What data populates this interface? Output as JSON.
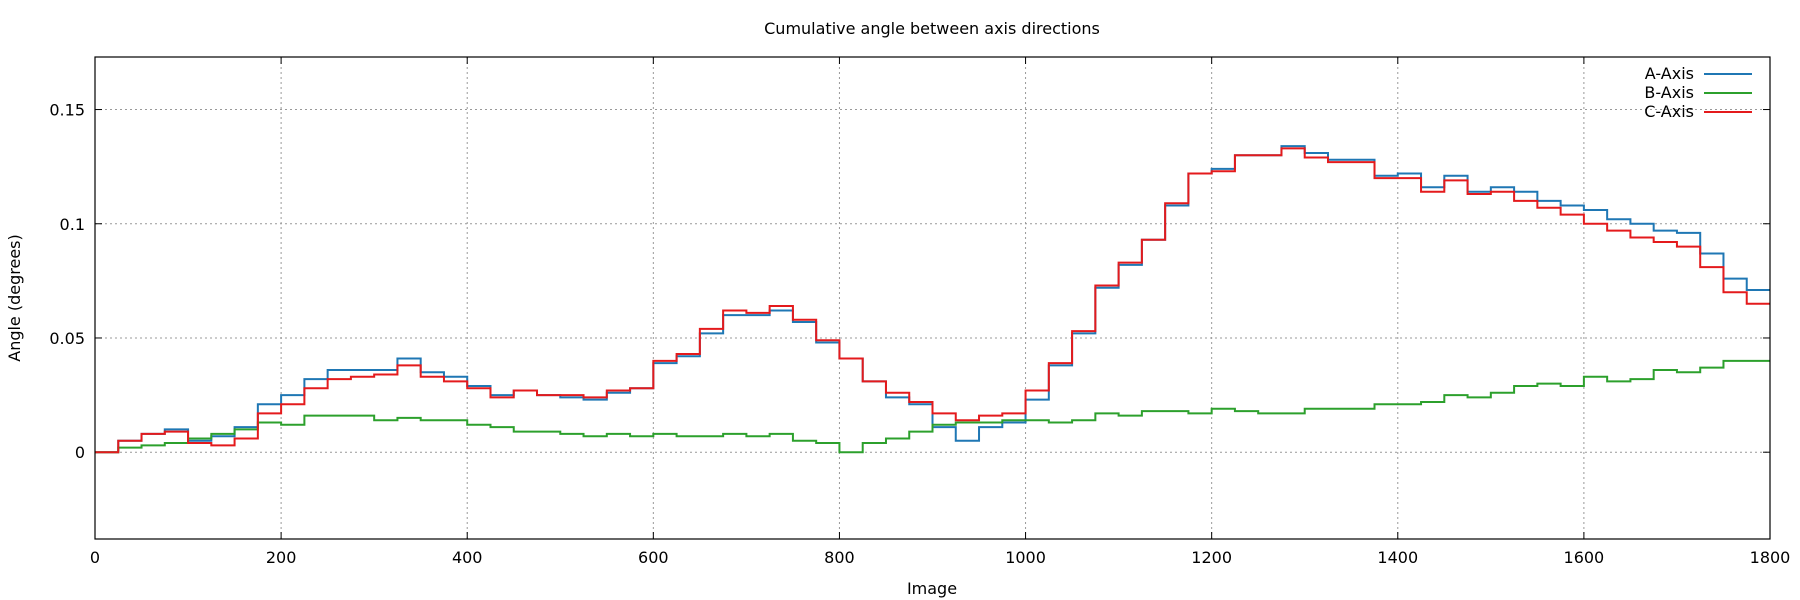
{
  "chart_data": {
    "type": "line",
    "title": "Cumulative angle between axis directions",
    "xlabel": "Image",
    "ylabel": "Angle (degrees)",
    "xlim": [
      0,
      1800
    ],
    "ylim": [
      -0.038,
      0.173
    ],
    "xticks": [
      0,
      200,
      400,
      600,
      800,
      1000,
      1200,
      1400,
      1600,
      1800
    ],
    "xtick_labels": [
      "0",
      "200",
      "400",
      "600",
      "800",
      "1000",
      "1200",
      "1400",
      "1600",
      "1800"
    ],
    "yticks": [
      0,
      0.05,
      0.1,
      0.15
    ],
    "ytick_labels": [
      "0",
      "0.05",
      "0.1",
      "0.15"
    ],
    "grid": true,
    "legend_position": "top-right",
    "step": true,
    "x": [
      0,
      25,
      50,
      75,
      100,
      125,
      150,
      175,
      200,
      225,
      250,
      275,
      300,
      325,
      350,
      375,
      400,
      425,
      450,
      475,
      500,
      525,
      550,
      575,
      600,
      625,
      650,
      675,
      700,
      725,
      750,
      775,
      800,
      825,
      850,
      875,
      900,
      925,
      950,
      975,
      1000,
      1025,
      1050,
      1075,
      1100,
      1125,
      1150,
      1175,
      1200,
      1225,
      1250,
      1275,
      1300,
      1325,
      1350,
      1375,
      1400,
      1425,
      1450,
      1475,
      1500,
      1525,
      1550,
      1575,
      1600,
      1625,
      1650,
      1675,
      1700,
      1725,
      1750,
      1775,
      1800
    ],
    "series": [
      {
        "name": "A-Axis",
        "color": "#1f77b4",
        "values": [
          0.0,
          0.005,
          0.008,
          0.01,
          0.005,
          0.007,
          0.011,
          0.021,
          0.025,
          0.032,
          0.036,
          0.036,
          0.036,
          0.041,
          0.035,
          0.033,
          0.029,
          0.025,
          0.027,
          0.025,
          0.024,
          0.023,
          0.026,
          0.028,
          0.039,
          0.042,
          0.052,
          0.06,
          0.06,
          0.062,
          0.057,
          0.048,
          0.041,
          0.031,
          0.024,
          0.021,
          0.011,
          0.005,
          0.011,
          0.013,
          0.023,
          0.038,
          0.052,
          0.072,
          0.082,
          0.093,
          0.108,
          0.122,
          0.124,
          0.13,
          0.13,
          0.134,
          0.131,
          0.128,
          0.128,
          0.121,
          0.122,
          0.116,
          0.121,
          0.114,
          0.116,
          0.114,
          0.11,
          0.108,
          0.106,
          0.102,
          0.1,
          0.097,
          0.096,
          0.087,
          0.076,
          0.071,
          0.071
        ]
      },
      {
        "name": "B-Axis",
        "color": "#2ca02c",
        "values": [
          0.0,
          0.002,
          0.003,
          0.004,
          0.006,
          0.008,
          0.01,
          0.013,
          0.012,
          0.016,
          0.016,
          0.016,
          0.014,
          0.015,
          0.014,
          0.014,
          0.012,
          0.011,
          0.009,
          0.009,
          0.008,
          0.007,
          0.008,
          0.007,
          0.008,
          0.007,
          0.007,
          0.008,
          0.007,
          0.008,
          0.005,
          0.004,
          0.0,
          0.004,
          0.006,
          0.009,
          0.012,
          0.013,
          0.013,
          0.014,
          0.014,
          0.013,
          0.014,
          0.017,
          0.016,
          0.018,
          0.018,
          0.017,
          0.019,
          0.018,
          0.017,
          0.017,
          0.019,
          0.019,
          0.019,
          0.021,
          0.021,
          0.022,
          0.025,
          0.024,
          0.026,
          0.029,
          0.03,
          0.029,
          0.033,
          0.031,
          0.032,
          0.036,
          0.035,
          0.037,
          0.04,
          0.04,
          0.04
        ]
      },
      {
        "name": "C-Axis",
        "color": "#e41a1c",
        "values": [
          0.0,
          0.005,
          0.008,
          0.009,
          0.004,
          0.003,
          0.006,
          0.017,
          0.021,
          0.028,
          0.032,
          0.033,
          0.034,
          0.038,
          0.033,
          0.031,
          0.028,
          0.024,
          0.027,
          0.025,
          0.025,
          0.024,
          0.027,
          0.028,
          0.04,
          0.043,
          0.054,
          0.062,
          0.061,
          0.064,
          0.058,
          0.049,
          0.041,
          0.031,
          0.026,
          0.022,
          0.017,
          0.014,
          0.016,
          0.017,
          0.027,
          0.039,
          0.053,
          0.073,
          0.083,
          0.093,
          0.109,
          0.122,
          0.123,
          0.13,
          0.13,
          0.133,
          0.129,
          0.127,
          0.127,
          0.12,
          0.12,
          0.114,
          0.119,
          0.113,
          0.114,
          0.11,
          0.107,
          0.104,
          0.1,
          0.097,
          0.094,
          0.092,
          0.09,
          0.081,
          0.07,
          0.065,
          0.065
        ]
      }
    ]
  }
}
